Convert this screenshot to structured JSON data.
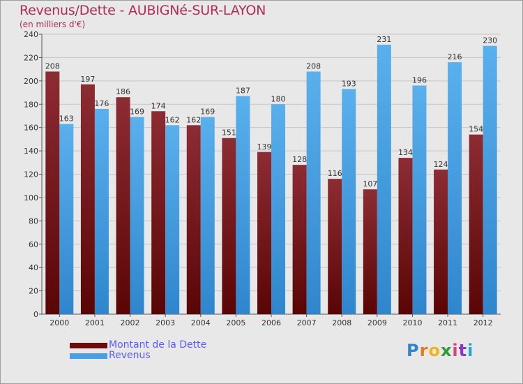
{
  "title": "Revenus/Dette - AUBIGNé-SUR-LAYON",
  "subtitle": "(en milliers d'€)",
  "legend": [
    {
      "label": "Montant de la Dette",
      "color": "#6b0d0d"
    },
    {
      "label": "Revenus",
      "color": "#4a9fe3"
    }
  ],
  "logo": {
    "text": "Proxiti",
    "letters": [
      "P",
      "r",
      "o",
      "x",
      "i",
      "t",
      "i"
    ]
  },
  "chart_data": {
    "type": "bar",
    "categories": [
      "2000",
      "2001",
      "2002",
      "2003",
      "2004",
      "2005",
      "2006",
      "2007",
      "2008",
      "2009",
      "2010",
      "2011",
      "2012"
    ],
    "series": [
      {
        "name": "Montant de la Dette",
        "color": "#7a1a1a",
        "values": [
          208,
          197,
          186,
          174,
          162,
          151,
          139,
          128,
          116,
          107,
          134,
          124,
          154
        ]
      },
      {
        "name": "Revenus",
        "color": "#4a9fe3",
        "values": [
          163,
          176,
          169,
          162,
          169,
          187,
          180,
          208,
          193,
          231,
          196,
          216,
          230
        ]
      }
    ],
    "ylim": [
      0,
      240
    ],
    "yticks": [
      0,
      20,
      40,
      60,
      80,
      100,
      120,
      140,
      160,
      180,
      200,
      220,
      240
    ],
    "grid": true,
    "title": "Revenus/Dette - AUBIGNé-SUR-LAYON",
    "ylabel": "(en milliers d'€)",
    "xlabel": ""
  }
}
